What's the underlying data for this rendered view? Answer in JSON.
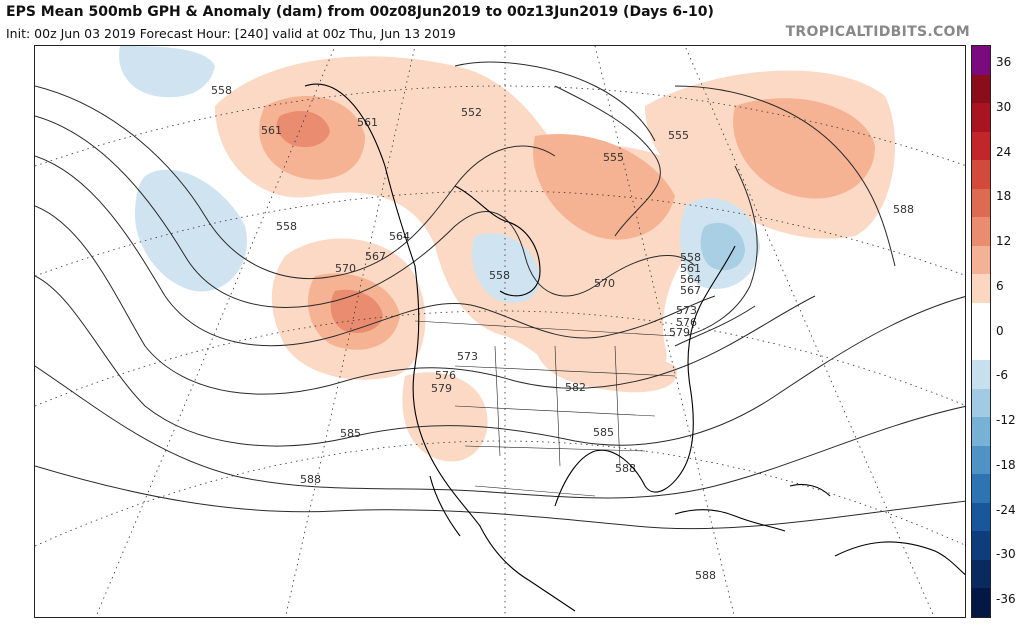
{
  "header": {
    "title": "EPS Mean 500mb GPH & Anomaly (dam) from 00z08Jun2019 to 00z13Jun2019 (Days 6-10)",
    "subtitle": "Init: 00z Jun 03 2019   Forecast Hour: [240]   valid at 00z Thu, Jun 13 2019",
    "brand": "TROPICALTIDBITS.COM"
  },
  "colorbar": {
    "labels": [
      "36",
      "30",
      "24",
      "18",
      "12",
      "6",
      "0",
      "-6",
      "-12",
      "-18",
      "-24",
      "-30",
      "-36"
    ],
    "colors": [
      "#7b0a7f",
      "#8b0d1a",
      "#a8141f",
      "#c3262a",
      "#d24a3b",
      "#dd6b52",
      "#e98c70",
      "#f3b195",
      "#fcd7c0",
      "#ffffff",
      "#ffffff",
      "#c6e0ee",
      "#a0cbe2",
      "#78b1d6",
      "#4f93c6",
      "#2e74b3",
      "#1a579a",
      "#0f3d7c",
      "#082a5f",
      "#031845"
    ]
  },
  "map": {
    "contour_labels": [
      "558",
      "561",
      "561",
      "552",
      "555",
      "555",
      "588",
      "558",
      "567",
      "564",
      "570",
      "558",
      "570",
      "558",
      "561",
      "564",
      "567",
      "573",
      "576",
      "579",
      "573",
      "576",
      "579",
      "582",
      "585",
      "585",
      "588",
      "588",
      "588"
    ],
    "colors": {
      "positive_light": "#fcd9c4",
      "positive_mid": "#f5b394",
      "positive_strong": "#e98c70",
      "negative_light": "#cfe4f0",
      "negative_mid": "#a9cfe4"
    }
  }
}
